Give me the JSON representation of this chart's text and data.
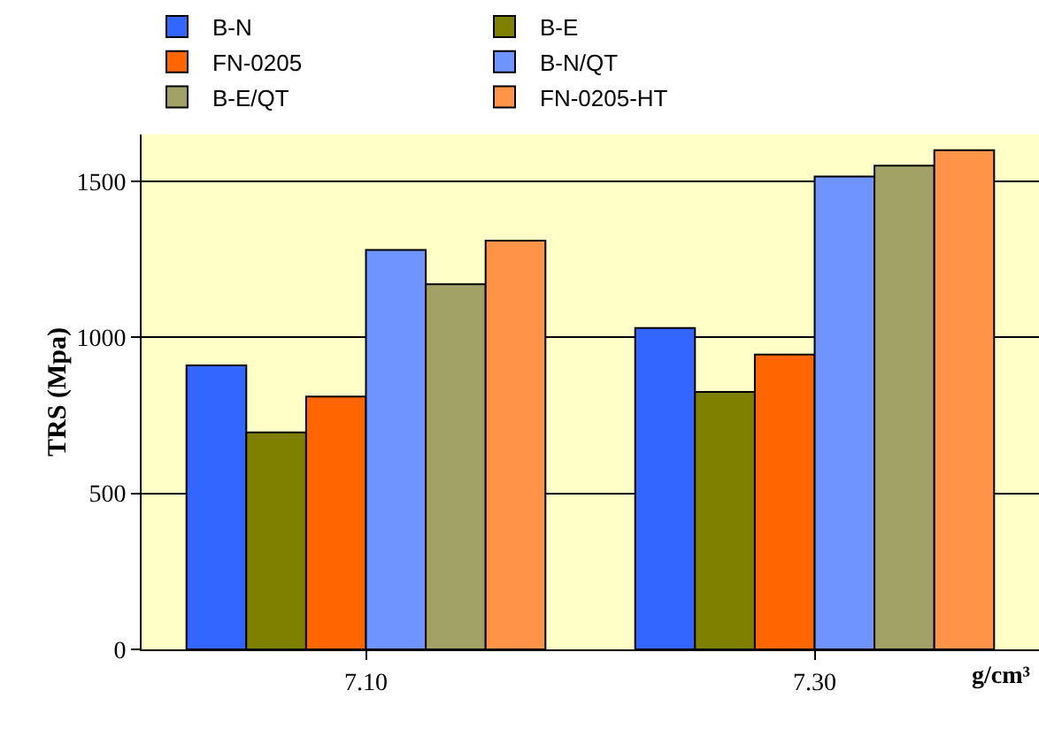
{
  "chart_data": {
    "type": "bar",
    "ylabel": "TRS (Mpa)",
    "xlabel": "g/cm³",
    "categories": [
      "7.10",
      "7.30"
    ],
    "series": [
      {
        "name": "B-N",
        "color": "#3366ff",
        "values": [
          910,
          1030
        ]
      },
      {
        "name": "B-E",
        "color": "#808000",
        "values": [
          695,
          825
        ]
      },
      {
        "name": "FN-0205",
        "color": "#ff6600",
        "values": [
          810,
          945
        ]
      },
      {
        "name": "B-N/QT",
        "color": "#6f94ff",
        "values": [
          1280,
          1515
        ]
      },
      {
        "name": "B-E/QT",
        "color": "#a3a266",
        "values": [
          1170,
          1550
        ]
      },
      {
        "name": "FN-0205-HT",
        "color": "#ff9448",
        "values": [
          1310,
          1600
        ]
      }
    ],
    "ylim": [
      0,
      1650
    ],
    "yticks": [
      0,
      500,
      1000,
      1500
    ],
    "grid": "y",
    "legend": "top"
  }
}
